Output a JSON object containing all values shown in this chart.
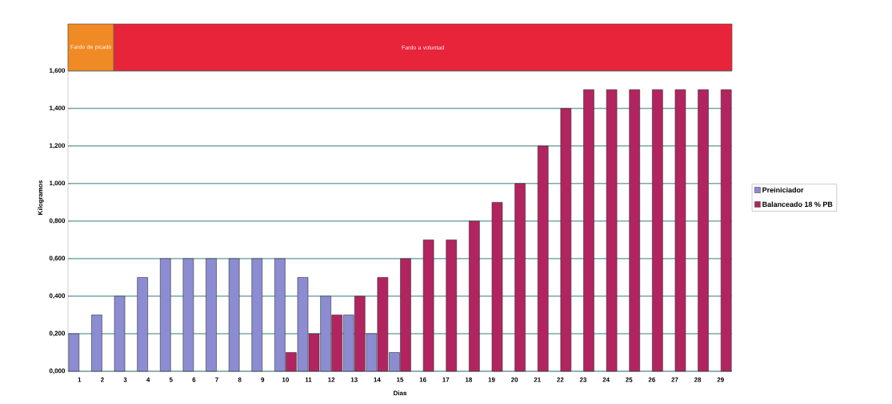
{
  "chart_data": {
    "type": "bar",
    "xlabel": "Dias",
    "ylabel": "Kilogramos",
    "x": [
      1,
      2,
      3,
      4,
      5,
      6,
      7,
      8,
      9,
      10,
      11,
      12,
      13,
      14,
      15,
      16,
      17,
      18,
      19,
      20,
      21,
      22,
      23,
      24,
      25,
      26,
      27,
      28,
      29
    ],
    "xlim": [
      0.5,
      29.5
    ],
    "xticks": [
      1,
      2,
      3,
      4,
      5,
      6,
      7,
      8,
      9,
      10,
      11,
      12,
      13,
      14,
      15,
      16,
      17,
      18,
      19,
      20,
      21,
      22,
      23,
      24,
      25,
      26,
      27,
      28,
      29
    ],
    "ylim": [
      0,
      1.85
    ],
    "yticks": [
      {
        "value": 0,
        "label": "0,000"
      },
      {
        "value": 0.2,
        "label": "0,200"
      },
      {
        "value": 0.4,
        "label": "0,400"
      },
      {
        "value": 0.6,
        "label": "0,600"
      },
      {
        "value": 0.8,
        "label": "0,800"
      },
      {
        "value": 1.0,
        "label": "1,000"
      },
      {
        "value": 1.2,
        "label": "1,200"
      },
      {
        "value": 1.4,
        "label": "1,400"
      },
      {
        "value": 1.6,
        "label": "1,600"
      }
    ],
    "series": [
      {
        "name": "Preiniciador",
        "color": "#8c8cd2",
        "values": [
          0.2,
          0.3,
          0.4,
          0.5,
          0.6,
          0.6,
          0.6,
          0.6,
          0.6,
          0.6,
          0.5,
          0.4,
          0.3,
          0.2,
          0.1,
          null,
          null,
          null,
          null,
          null,
          null,
          null,
          null,
          null,
          null,
          null,
          null,
          null,
          null
        ]
      },
      {
        "name": "Balanceado 18 % PB",
        "color": "#b22460",
        "values": [
          null,
          null,
          null,
          null,
          null,
          null,
          null,
          null,
          null,
          0.1,
          0.2,
          0.3,
          0.4,
          0.5,
          0.6,
          0.7,
          0.7,
          0.8,
          0.9,
          1.0,
          1.2,
          1.4,
          1.5,
          1.5,
          1.5,
          1.5,
          1.5,
          1.5,
          1.5
        ]
      }
    ],
    "bands": [
      {
        "axis": "x",
        "from": 0.5,
        "to": 2.5,
        "label": "Fardo de picado",
        "color": "#f08a24"
      },
      {
        "axis": "x",
        "from": 2.5,
        "to": 29.5,
        "label": "Fardo a voluntad",
        "color": "#e8243a"
      }
    ],
    "grid": "y",
    "legend": "right"
  }
}
